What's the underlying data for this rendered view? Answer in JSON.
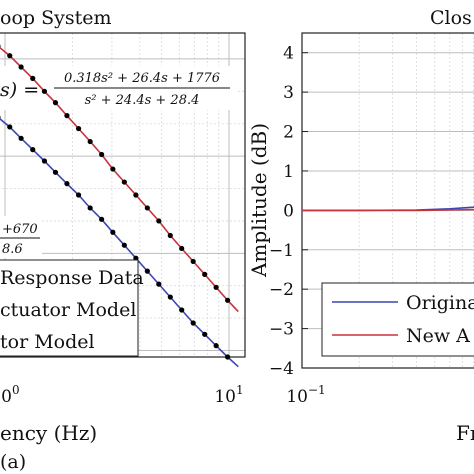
{
  "chart_data": [
    {
      "type": "line",
      "title": "oop System",
      "xlabel": "ency (Hz)",
      "x_scale": "log",
      "x_ticks": [
        {
          "value": 1,
          "base": "10",
          "exp": "0"
        },
        {
          "value": 10,
          "base": "10",
          "exp": "1"
        }
      ],
      "equation_upper": {
        "lhs": "s) =",
        "numerator": "0.318s² + 26.4s + 1776",
        "denominator": "s² + 24.4s + 28.4"
      },
      "equation_lower": {
        "numerator": "+670",
        "denominator": "8.6"
      },
      "legend": {
        "placement": "bottom-left",
        "entries": [
          "Response Data",
          "ctuator Model",
          "tor Model"
        ]
      },
      "series": [
        {
          "name": "Response Data",
          "style": "markers",
          "color": "#000000",
          "x": [
            0.93,
            1.05,
            1.18,
            1.33,
            1.5,
            1.68,
            1.89,
            2.13,
            2.4,
            2.7,
            3.03,
            3.41,
            3.84,
            4.32,
            4.86,
            5.47,
            6.15,
            6.92,
            7.79,
            8.76,
            9.86
          ],
          "y": [
            0.96,
            0.93,
            0.895,
            0.86,
            0.82,
            0.785,
            0.745,
            0.705,
            0.665,
            0.625,
            0.58,
            0.54,
            0.5,
            0.46,
            0.42,
            0.375,
            0.335,
            0.295,
            0.255,
            0.215,
            0.175
          ]
        },
        {
          "name": "Response Data",
          "style": "markers",
          "color": "#000000",
          "x": [
            0.93,
            1.05,
            1.18,
            1.33,
            1.5,
            1.68,
            1.89,
            2.13,
            2.4,
            2.7,
            3.03,
            3.41,
            3.84,
            4.32,
            4.86,
            5.47,
            6.15,
            6.92,
            7.79,
            8.76,
            9.86
          ],
          "y": [
            0.74,
            0.71,
            0.675,
            0.64,
            0.605,
            0.57,
            0.535,
            0.5,
            0.46,
            0.425,
            0.385,
            0.345,
            0.305,
            0.265,
            0.225,
            0.185,
            0.145,
            0.105,
            0.07,
            0.035,
            0.0
          ]
        },
        {
          "name": "New Actuator Model",
          "style": "line",
          "color": "#c8323c",
          "x": [
            0.93,
            1.05,
            1.18,
            1.33,
            1.5,
            1.68,
            1.89,
            2.13,
            2.4,
            2.7,
            3.03,
            3.41,
            3.84,
            4.32,
            4.86,
            5.47,
            6.15,
            6.92,
            7.79,
            8.76,
            9.86,
            11
          ],
          "y": [
            0.96,
            0.93,
            0.895,
            0.86,
            0.82,
            0.785,
            0.745,
            0.705,
            0.665,
            0.625,
            0.58,
            0.54,
            0.5,
            0.46,
            0.42,
            0.375,
            0.335,
            0.295,
            0.255,
            0.215,
            0.175,
            0.14
          ]
        },
        {
          "name": "Original Actuator Model",
          "style": "line",
          "color": "#3c46b4",
          "x": [
            0.93,
            1.05,
            1.18,
            1.33,
            1.5,
            1.68,
            1.89,
            2.13,
            2.4,
            2.7,
            3.03,
            3.41,
            3.84,
            4.32,
            4.86,
            5.47,
            6.15,
            6.92,
            7.79,
            8.76,
            9.86,
            11
          ],
          "y": [
            0.74,
            0.71,
            0.675,
            0.64,
            0.605,
            0.57,
            0.535,
            0.5,
            0.46,
            0.425,
            0.385,
            0.345,
            0.305,
            0.265,
            0.225,
            0.185,
            0.145,
            0.105,
            0.07,
            0.035,
            0.0,
            -0.03
          ]
        }
      ]
    },
    {
      "type": "line",
      "title": "Clos",
      "xlabel": "Fr",
      "ylabel": "Amplitude (dB)",
      "x_scale": "log",
      "ylim": [
        -4,
        4.5
      ],
      "yticks": [
        -4,
        -3,
        -2,
        -1,
        0,
        1,
        2,
        3,
        4
      ],
      "ytick_labels": [
        "−4",
        "−3",
        "−2",
        "−1",
        "0",
        "1",
        "2",
        "3",
        "4"
      ],
      "x_ticks": [
        {
          "value": 0.1,
          "base": "10",
          "exp": "−1"
        }
      ],
      "legend": {
        "placement": "bottom-right",
        "entries": [
          "Origina",
          "New A"
        ]
      },
      "series": [
        {
          "name": "Origina",
          "color": "#3c46b4",
          "x": [
            0.1,
            0.2,
            0.4,
            0.6,
            0.8,
            1.0,
            1.1
          ],
          "y": [
            0.0,
            0.0,
            0.01,
            0.04,
            0.08,
            0.13,
            0.15
          ]
        },
        {
          "name": "New A",
          "color": "#c8323c",
          "x": [
            0.1,
            0.2,
            0.4,
            0.6,
            0.8,
            1.0,
            1.1
          ],
          "y": [
            0.0,
            0.0,
            0.0,
            0.01,
            0.02,
            0.04,
            0.05
          ]
        }
      ]
    }
  ],
  "caption": "(a)"
}
